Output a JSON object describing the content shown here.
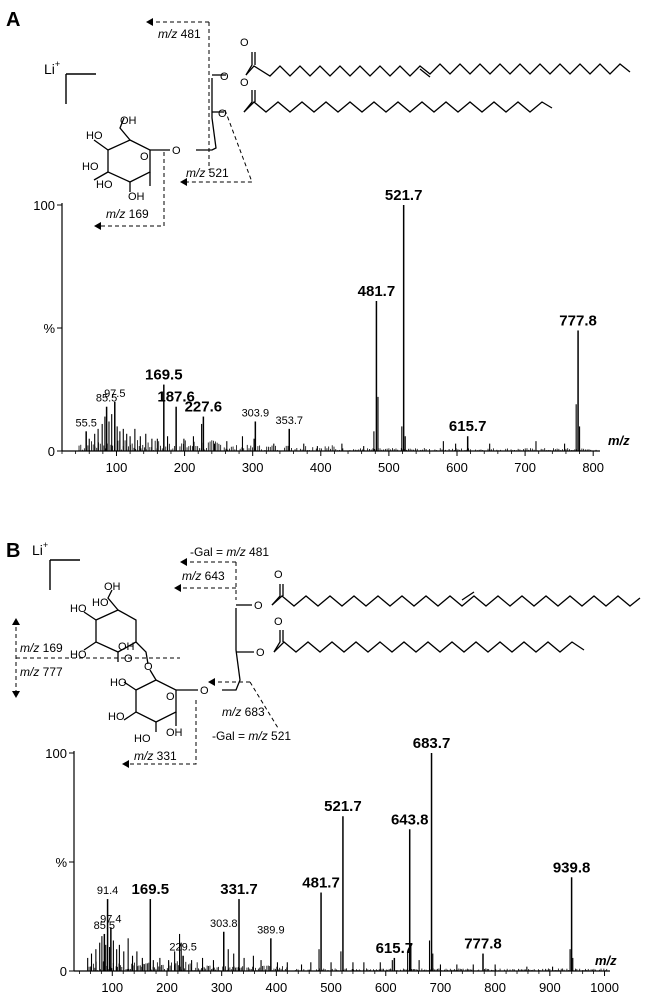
{
  "chart_data": [
    {
      "type": "bar",
      "panel": "A",
      "ion": "Li+",
      "xlabel": "m/z",
      "ylabel": "%",
      "xlim": [
        20,
        810
      ],
      "ylim": [
        0,
        100
      ],
      "xticks": [
        "100",
        "200",
        "300",
        "400",
        "500",
        "600",
        "700",
        "800"
      ],
      "yticks": [
        "0",
        "%",
        "100"
      ],
      "fragments": [
        "m/z 481",
        "m/z 521",
        "m/z 169"
      ],
      "peaks": [
        {
          "mz": 55.5,
          "intensity": 8,
          "label": "55.5",
          "strong": false
        },
        {
          "mz": 85.5,
          "intensity": 18,
          "label": "85.5",
          "strong": false
        },
        {
          "mz": 97.5,
          "intensity": 20,
          "label": "97.5",
          "strong": false
        },
        {
          "mz": 169.5,
          "intensity": 27,
          "label": "169.5",
          "strong": true
        },
        {
          "mz": 187.6,
          "intensity": 18,
          "label": "187.6",
          "strong": true
        },
        {
          "mz": 227.6,
          "intensity": 14,
          "label": "227.6",
          "strong": true
        },
        {
          "mz": 303.9,
          "intensity": 12,
          "label": "303.9",
          "strong": false
        },
        {
          "mz": 353.7,
          "intensity": 9,
          "label": "353.7",
          "strong": false
        },
        {
          "mz": 481.7,
          "intensity": 61,
          "label": "481.7",
          "strong": true
        },
        {
          "mz": 521.7,
          "intensity": 100,
          "label": "521.7",
          "strong": true
        },
        {
          "mz": 615.7,
          "intensity": 6,
          "label": "615.7",
          "strong": true
        },
        {
          "mz": 777.8,
          "intensity": 49,
          "label": "777.8",
          "strong": true
        }
      ],
      "minor_peaks": [
        {
          "mz": 60,
          "intensity": 5
        },
        {
          "mz": 68,
          "intensity": 7
        },
        {
          "mz": 73,
          "intensity": 9
        },
        {
          "mz": 79,
          "intensity": 11
        },
        {
          "mz": 83,
          "intensity": 14
        },
        {
          "mz": 89,
          "intensity": 12
        },
        {
          "mz": 93,
          "intensity": 15
        },
        {
          "mz": 101,
          "intensity": 10
        },
        {
          "mz": 105,
          "intensity": 8
        },
        {
          "mz": 110,
          "intensity": 9
        },
        {
          "mz": 115,
          "intensity": 7
        },
        {
          "mz": 120,
          "intensity": 6
        },
        {
          "mz": 127,
          "intensity": 9
        },
        {
          "mz": 135,
          "intensity": 6
        },
        {
          "mz": 143,
          "intensity": 7
        },
        {
          "mz": 152,
          "intensity": 5
        },
        {
          "mz": 160,
          "intensity": 5
        },
        {
          "mz": 175,
          "intensity": 6
        },
        {
          "mz": 199,
          "intensity": 5
        },
        {
          "mz": 213,
          "intensity": 6
        },
        {
          "mz": 225,
          "intensity": 11
        },
        {
          "mz": 244,
          "intensity": 3
        },
        {
          "mz": 262,
          "intensity": 4
        },
        {
          "mz": 285,
          "intensity": 6
        },
        {
          "mz": 302,
          "intensity": 5
        },
        {
          "mz": 331,
          "intensity": 3
        },
        {
          "mz": 375,
          "intensity": 3
        },
        {
          "mz": 395,
          "intensity": 2
        },
        {
          "mz": 431,
          "intensity": 3
        },
        {
          "mz": 463,
          "intensity": 2
        },
        {
          "mz": 478,
          "intensity": 8
        },
        {
          "mz": 484,
          "intensity": 22
        },
        {
          "mz": 519,
          "intensity": 10
        },
        {
          "mz": 524,
          "intensity": 6
        },
        {
          "mz": 580,
          "intensity": 4
        },
        {
          "mz": 598,
          "intensity": 3
        },
        {
          "mz": 648,
          "intensity": 3
        },
        {
          "mz": 716,
          "intensity": 4
        },
        {
          "mz": 758,
          "intensity": 3
        },
        {
          "mz": 775,
          "intensity": 19
        },
        {
          "mz": 780,
          "intensity": 10
        }
      ]
    },
    {
      "type": "bar",
      "panel": "B",
      "ion": "Li+",
      "xlabel": "m/z",
      "ylabel": "%",
      "xlim": [
        30,
        1010
      ],
      "ylim": [
        0,
        100
      ],
      "xticks": [
        "100",
        "200",
        "300",
        "400",
        "500",
        "600",
        "700",
        "800",
        "900",
        "1000"
      ],
      "yticks": [
        "0",
        "%",
        "100"
      ],
      "fragments": [
        "-Gal = m/z 481",
        "m/z 643",
        "m/z 169",
        "m/z 777",
        "m/z 683",
        "-Gal = m/z 521",
        "m/z 331"
      ],
      "peaks": [
        {
          "mz": 85.5,
          "intensity": 17,
          "label": "85.5",
          "strong": false
        },
        {
          "mz": 91.4,
          "intensity": 33,
          "label": "91.4",
          "strong": false
        },
        {
          "mz": 97.4,
          "intensity": 20,
          "label": "97.4",
          "strong": false
        },
        {
          "mz": 169.5,
          "intensity": 33,
          "label": "169.5",
          "strong": true
        },
        {
          "mz": 229.5,
          "intensity": 7,
          "label": "229.5",
          "strong": false
        },
        {
          "mz": 303.8,
          "intensity": 18,
          "label": "303.8",
          "strong": false
        },
        {
          "mz": 331.7,
          "intensity": 33,
          "label": "331.7",
          "strong": true
        },
        {
          "mz": 389.9,
          "intensity": 15,
          "label": "389.9",
          "strong": false
        },
        {
          "mz": 481.7,
          "intensity": 36,
          "label": "481.7",
          "strong": true
        },
        {
          "mz": 521.7,
          "intensity": 71,
          "label": "521.7",
          "strong": true
        },
        {
          "mz": 615.7,
          "intensity": 6,
          "label": "615.7",
          "strong": true
        },
        {
          "mz": 643.8,
          "intensity": 65,
          "label": "643.8",
          "strong": true
        },
        {
          "mz": 683.7,
          "intensity": 100,
          "label": "683.7",
          "strong": true
        },
        {
          "mz": 777.8,
          "intensity": 8,
          "label": "777.8",
          "strong": true
        },
        {
          "mz": 939.8,
          "intensity": 43,
          "label": "939.8",
          "strong": true
        }
      ],
      "minor_peaks": [
        {
          "mz": 55,
          "intensity": 6
        },
        {
          "mz": 62,
          "intensity": 8
        },
        {
          "mz": 70,
          "intensity": 10
        },
        {
          "mz": 77,
          "intensity": 13
        },
        {
          "mz": 81,
          "intensity": 16
        },
        {
          "mz": 88,
          "intensity": 12
        },
        {
          "mz": 95,
          "intensity": 11
        },
        {
          "mz": 102,
          "intensity": 14
        },
        {
          "mz": 108,
          "intensity": 10
        },
        {
          "mz": 113,
          "intensity": 12
        },
        {
          "mz": 121,
          "intensity": 9
        },
        {
          "mz": 129,
          "intensity": 15
        },
        {
          "mz": 137,
          "intensity": 7
        },
        {
          "mz": 145,
          "intensity": 9
        },
        {
          "mz": 155,
          "intensity": 6
        },
        {
          "mz": 175,
          "intensity": 5
        },
        {
          "mz": 187,
          "intensity": 6
        },
        {
          "mz": 203,
          "intensity": 5
        },
        {
          "mz": 214,
          "intensity": 9
        },
        {
          "mz": 223,
          "intensity": 17
        },
        {
          "mz": 226,
          "intensity": 13
        },
        {
          "mz": 245,
          "intensity": 5
        },
        {
          "mz": 265,
          "intensity": 6
        },
        {
          "mz": 285,
          "intensity": 5
        },
        {
          "mz": 312,
          "intensity": 10
        },
        {
          "mz": 322,
          "intensity": 8
        },
        {
          "mz": 341,
          "intensity": 6
        },
        {
          "mz": 358,
          "intensity": 7
        },
        {
          "mz": 372,
          "intensity": 5
        },
        {
          "mz": 402,
          "intensity": 4
        },
        {
          "mz": 420,
          "intensity": 4
        },
        {
          "mz": 446,
          "intensity": 3
        },
        {
          "mz": 463,
          "intensity": 4
        },
        {
          "mz": 478,
          "intensity": 10
        },
        {
          "mz": 500,
          "intensity": 4
        },
        {
          "mz": 518,
          "intensity": 9
        },
        {
          "mz": 540,
          "intensity": 4
        },
        {
          "mz": 560,
          "intensity": 4
        },
        {
          "mz": 590,
          "intensity": 4
        },
        {
          "mz": 612,
          "intensity": 5
        },
        {
          "mz": 640,
          "intensity": 9
        },
        {
          "mz": 646,
          "intensity": 12
        },
        {
          "mz": 661,
          "intensity": 5
        },
        {
          "mz": 680,
          "intensity": 14
        },
        {
          "mz": 686,
          "intensity": 8
        },
        {
          "mz": 700,
          "intensity": 3
        },
        {
          "mz": 730,
          "intensity": 3
        },
        {
          "mz": 760,
          "intensity": 3
        },
        {
          "mz": 800,
          "intensity": 3
        },
        {
          "mz": 858,
          "intensity": 2
        },
        {
          "mz": 905,
          "intensity": 2
        },
        {
          "mz": 937,
          "intensity": 10
        },
        {
          "mz": 942,
          "intensity": 6
        }
      ]
    }
  ]
}
